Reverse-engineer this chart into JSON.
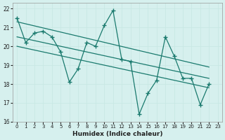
{
  "xlabel": "Humidex (Indice chaleur)",
  "bg_color": "#d6f0ee",
  "grid_color": "#c8e8e4",
  "line_color": "#1a7a6e",
  "xlim": [
    -0.5,
    23.5
  ],
  "ylim": [
    16,
    22.3
  ],
  "xticks": [
    0,
    1,
    2,
    3,
    4,
    5,
    6,
    7,
    8,
    9,
    10,
    11,
    12,
    13,
    14,
    15,
    16,
    17,
    18,
    19,
    20,
    21,
    22,
    23
  ],
  "yticks": [
    16,
    17,
    18,
    19,
    20,
    21,
    22
  ],
  "line1": [
    21.5,
    20.2,
    20.7,
    20.8,
    20.5,
    19.7,
    18.1,
    18.8,
    20.2,
    20.0,
    21.1,
    21.9,
    19.3,
    19.2,
    16.4,
    17.5,
    18.2,
    20.5,
    19.5,
    18.3,
    18.3,
    16.9,
    18.0,
    null
  ],
  "line2_x": [
    0,
    22
  ],
  "line2_y": [
    21.3,
    18.9
  ],
  "line3_x": [
    0,
    22
  ],
  "line3_y": [
    20.5,
    18.3
  ],
  "line4_x": [
    0,
    22
  ],
  "line4_y": [
    20.0,
    17.8
  ]
}
